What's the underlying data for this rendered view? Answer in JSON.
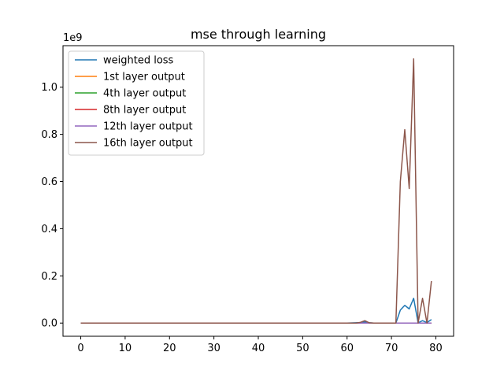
{
  "chart_data": {
    "type": "line",
    "title": "mse through learning",
    "xlabel": "",
    "ylabel": "",
    "y_offset_label": "1e9",
    "xlim": [
      -4,
      84
    ],
    "ylim": [
      -0.056,
      1.176
    ],
    "xticks": [
      0,
      10,
      20,
      30,
      40,
      50,
      60,
      70,
      80
    ],
    "yticks": [
      0.0,
      0.2,
      0.4,
      0.6,
      0.8,
      1.0
    ],
    "ytick_labels": [
      "0.0",
      "0.2",
      "0.4",
      "0.6",
      "0.8",
      "1.0"
    ],
    "grid": false,
    "legend_position": "upper left",
    "series": [
      {
        "name": "weighted loss",
        "color": "#1f77b4",
        "points": [
          [
            0,
            0
          ],
          [
            60,
            0
          ],
          [
            63,
            0.002
          ],
          [
            64,
            0.005
          ],
          [
            65,
            0.001
          ],
          [
            66,
            0
          ],
          [
            71,
            0
          ],
          [
            72,
            0.055
          ],
          [
            73,
            0.075
          ],
          [
            74,
            0.06
          ],
          [
            75,
            0.105
          ],
          [
            76,
            0.001
          ],
          [
            77,
            0.01
          ],
          [
            78,
            0.002
          ],
          [
            79,
            0.015
          ]
        ]
      },
      {
        "name": "1st layer output",
        "color": "#ff7f0e",
        "points": [
          [
            0,
            0
          ],
          [
            79,
            0
          ]
        ]
      },
      {
        "name": "4th layer output",
        "color": "#2ca02c",
        "points": [
          [
            0,
            0
          ],
          [
            79,
            0
          ]
        ]
      },
      {
        "name": "8th layer output",
        "color": "#d62728",
        "points": [
          [
            0,
            0
          ],
          [
            79,
            0
          ]
        ]
      },
      {
        "name": "12th layer output",
        "color": "#9467bd",
        "points": [
          [
            0,
            0
          ],
          [
            79,
            0
          ]
        ]
      },
      {
        "name": "16th layer output",
        "color": "#8c564b",
        "points": [
          [
            0,
            0
          ],
          [
            62,
            0
          ],
          [
            63,
            0.003
          ],
          [
            64,
            0.01
          ],
          [
            65,
            0.001
          ],
          [
            66,
            0
          ],
          [
            71,
            0
          ],
          [
            72,
            0.6
          ],
          [
            73,
            0.82
          ],
          [
            74,
            0.57
          ],
          [
            75,
            1.12
          ],
          [
            76,
            0
          ],
          [
            77,
            0.105
          ],
          [
            78,
            0
          ],
          [
            79,
            0.178
          ]
        ]
      }
    ]
  }
}
